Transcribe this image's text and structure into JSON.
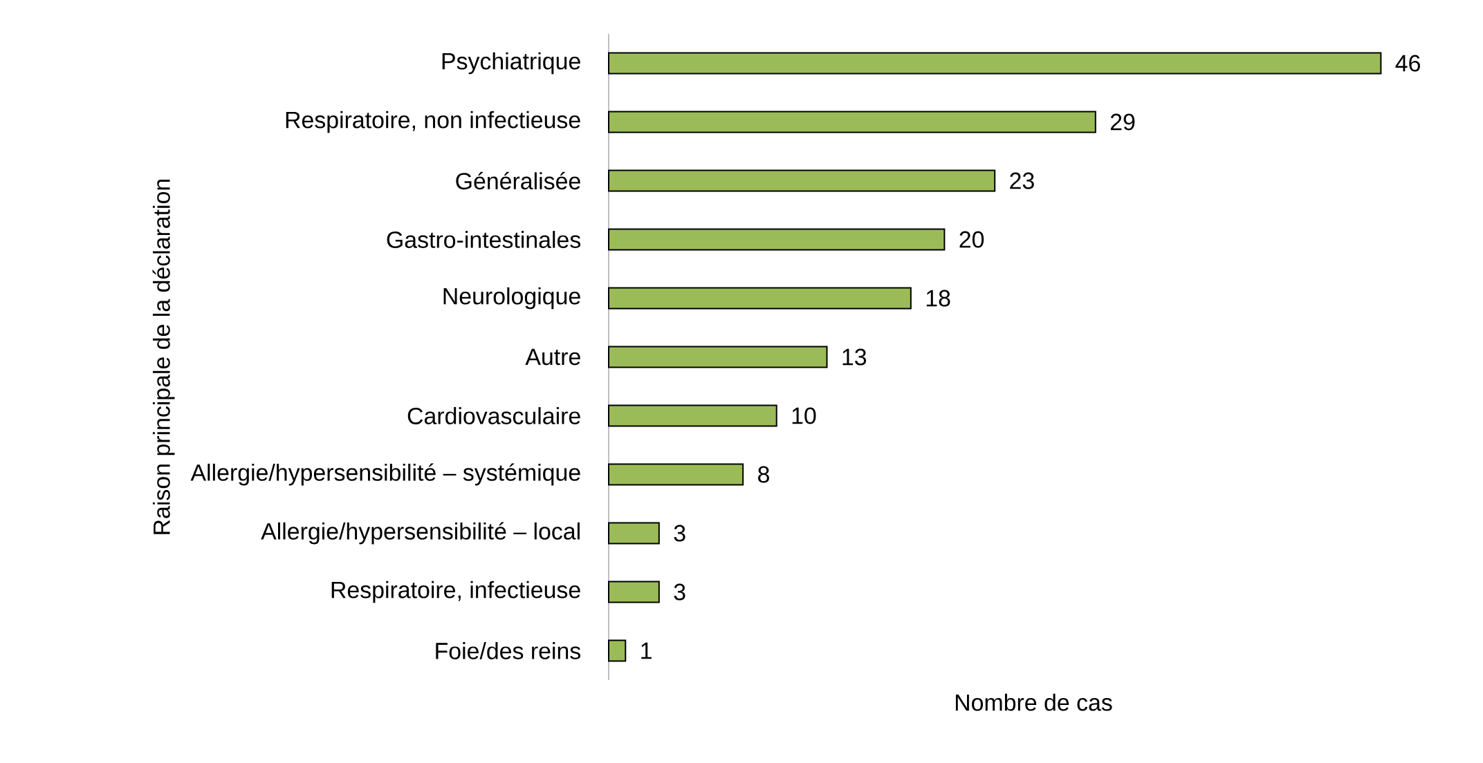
{
  "chart_data": {
    "type": "bar",
    "orientation": "horizontal",
    "xlabel": "Nombre de cas",
    "ylabel": "Raison principale de la déclaration",
    "categories": [
      "Psychiatrique",
      "Respiratoire, non infectieuse",
      "Généralisée",
      "Gastro-intestinales",
      "Neurologique",
      "Autre",
      "Cardiovasculaire",
      "Allergie/hypersensibilité – systémique",
      "Allergie/hypersensibilité – local",
      "Respiratoire, infectieuse",
      "Foie/des reins"
    ],
    "values": [
      46,
      29,
      23,
      20,
      18,
      13,
      10,
      8,
      3,
      3,
      1
    ],
    "color": "#9bbb59",
    "data_labels": true
  }
}
